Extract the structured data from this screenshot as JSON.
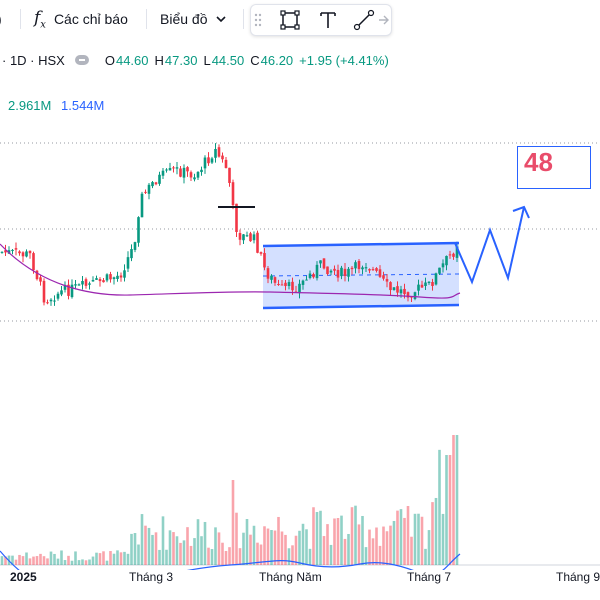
{
  "toolbar": {
    "indicators_label": "Các chỉ báo",
    "chart_type_label": "Biểu đồ",
    "fx_icon": "fx-icon",
    "chevron_icon": "chevron-down-icon",
    "drawing_tools": [
      "drag-handle-icon",
      "rectangle-tool-icon",
      "text-tool-icon",
      "trend-line-tool-icon",
      "arrow-tool-icon"
    ]
  },
  "legend": {
    "symbol": "· 1D · HSX",
    "open_label": "O",
    "open": "44.60",
    "high_label": "H",
    "high": "47.30",
    "low_label": "L",
    "low": "44.50",
    "close_label": "C",
    "close": "46.20",
    "change": "+1.95 (+4.41%)"
  },
  "volume_legend": {
    "value1": "2.961M",
    "value2": "1.544M"
  },
  "annotation": {
    "text": "48"
  },
  "x_axis": [
    "2025",
    "Tháng 3",
    "Tháng Năm",
    "Tháng 7",
    "Tháng 9"
  ],
  "colors": {
    "up": "#089981",
    "down": "#f23645",
    "ma": "#9c27b0",
    "drawing": "#2962ff",
    "volume_ma": "#2962ff"
  }
}
